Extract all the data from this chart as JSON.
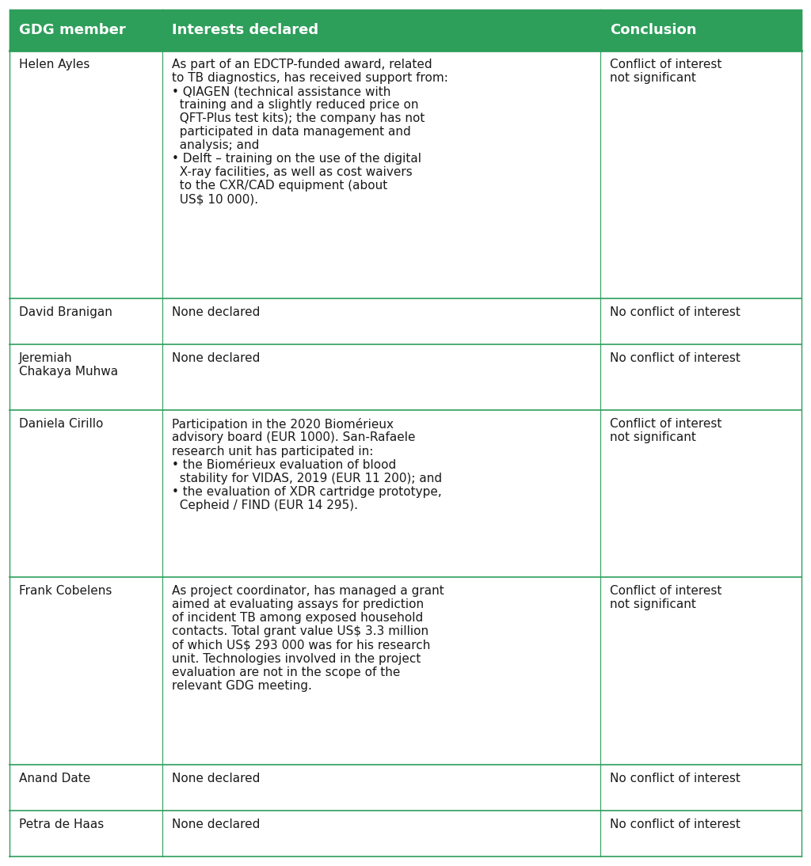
{
  "header": [
    "GDG member",
    "Interests declared",
    "Conclusion"
  ],
  "header_bg": "#2e9e5b",
  "header_text_color": "#ffffff",
  "row_bg": "#ffffff",
  "row_text_color": "#1a1a1a",
  "divider_color": "#2e9e5b",
  "font_size": 11.0,
  "header_font_size": 13.0,
  "rows": [
    {
      "member": "Helen Ayles",
      "interests": "As part of an EDCTP-funded award, related\nto TB diagnostics, has received support from:\n• QIAGEN (technical assistance with\n  training and a slightly reduced price on\n  QFT-Plus test kits); the company has not\n  participated in data management and\n  analysis; and\n• Delft – training on the use of the digital\n  X-ray facilities, as well as cost waivers\n  to the CXR/CAD equipment (about\n  US$ 10 000).",
      "conclusion": "Conflict of interest\nnot significant"
    },
    {
      "member": "David Branigan",
      "interests": "None declared",
      "conclusion": "No conflict of interest"
    },
    {
      "member": "Jeremiah\nChakaya Muhwa",
      "interests": "None declared",
      "conclusion": "No conflict of interest"
    },
    {
      "member": "Daniela Cirillo",
      "interests": "Participation in the 2020 Biomérieux\nadvisory board (EUR 1000). San-Rafaele\nresearch unit has participated in:\n• the Biomérieux evaluation of blood\n  stability for VIDAS, 2019 (EUR 11 200); and\n• the evaluation of XDR cartridge prototype,\n  Cepheid / FIND (EUR 14 295).",
      "conclusion": "Conflict of interest\nnot significant"
    },
    {
      "member": "Frank Cobelens",
      "interests": "As project coordinator, has managed a grant\naimed at evaluating assays for prediction\nof incident TB among exposed household\ncontacts. Total grant value US$ 3.3 million\nof which US$ 293 000 was for his research\nunit. Technologies involved in the project\nevaluation are not in the scope of the\nrelevant GDG meeting.",
      "conclusion": "Conflict of interest\nnot significant"
    },
    {
      "member": "Anand Date",
      "interests": "None declared",
      "conclusion": "No conflict of interest"
    },
    {
      "member": "Petra de Haas",
      "interests": "None declared",
      "conclusion": "No conflict of interest"
    }
  ]
}
